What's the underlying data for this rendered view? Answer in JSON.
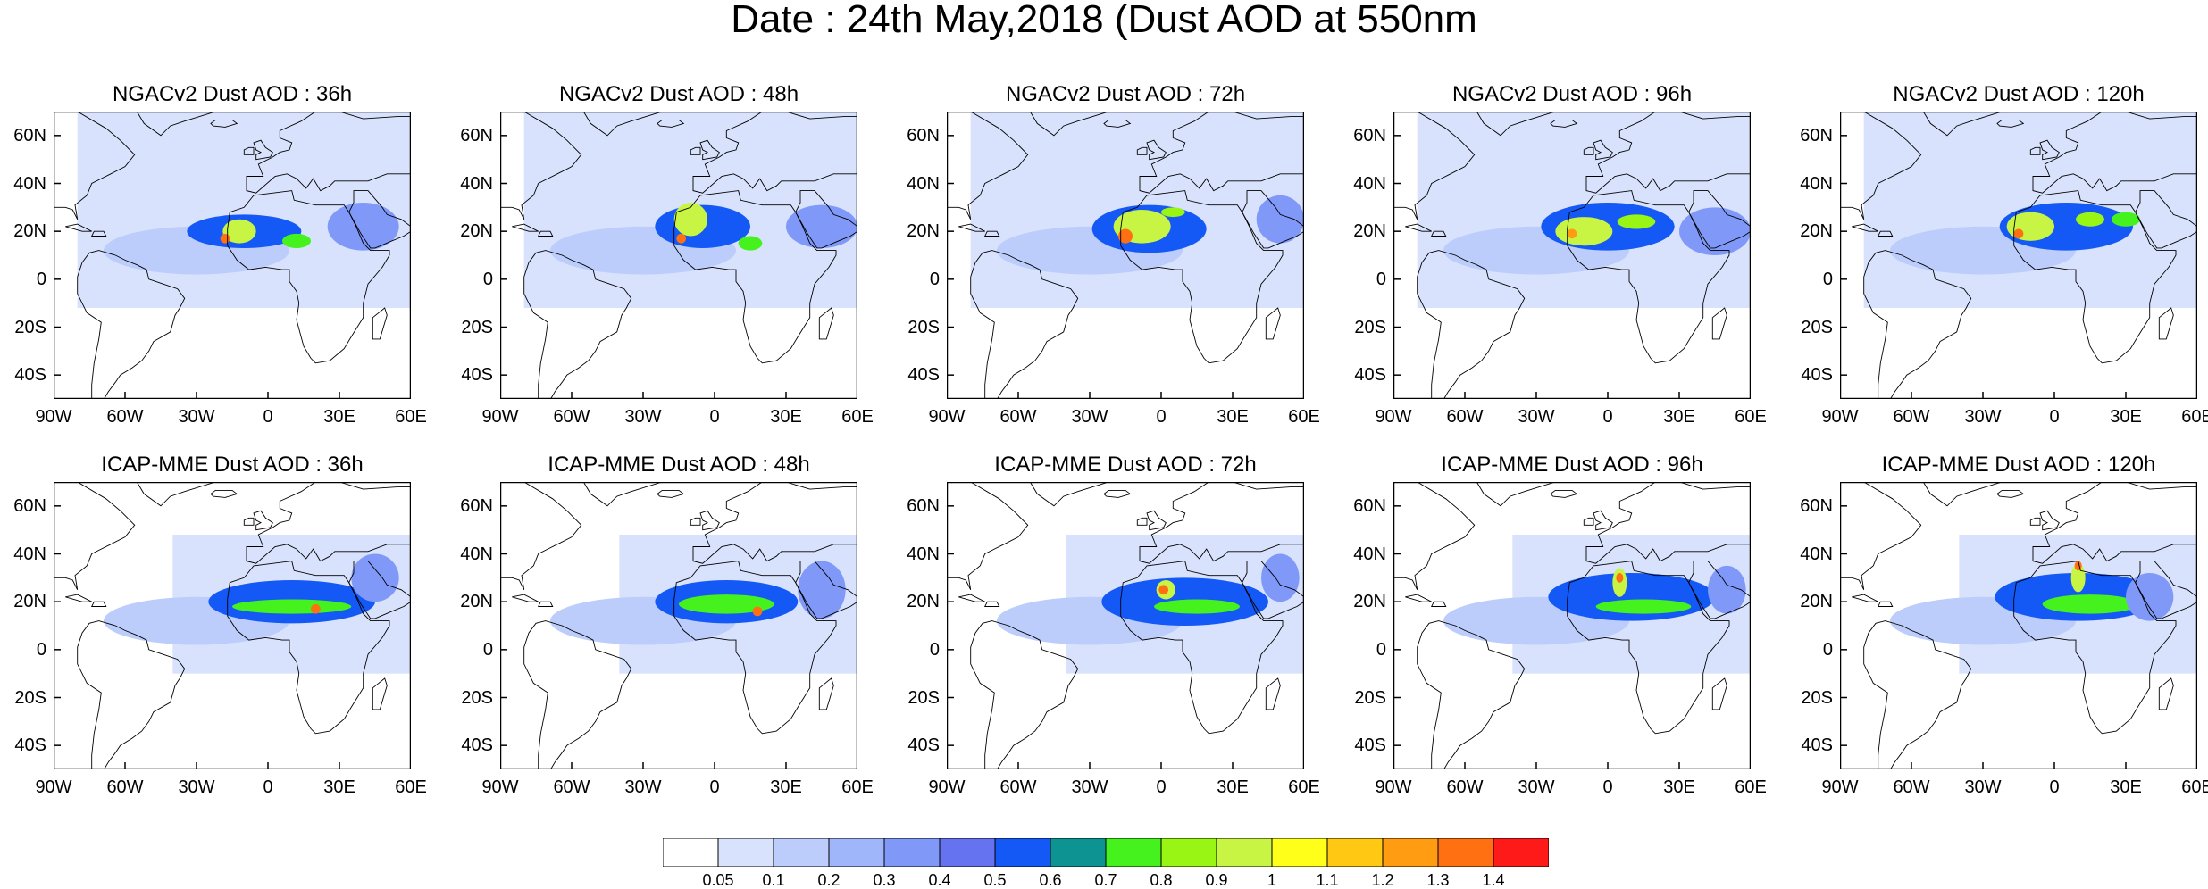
{
  "title": "Date : 24th May,2018 (Dust AOD at 550nm",
  "lat_ticks": [
    "60N",
    "40N",
    "20N",
    "0",
    "20S",
    "40S"
  ],
  "lon_ticks": [
    "90W",
    "60W",
    "30W",
    "0",
    "30E",
    "60E"
  ],
  "panels": [
    {
      "title": "NGACv2 Dust AOD : 36h",
      "blobs": [
        {
          "lon": -10,
          "lat": 20,
          "rx": 24,
          "ry": 7,
          "aod": 0.55
        },
        {
          "lon": -12,
          "lat": 20,
          "rx": 7,
          "ry": 5,
          "aod": 0.95
        },
        {
          "lon": -18,
          "lat": 17,
          "rx": 2,
          "ry": 2,
          "aod": 1.35
        },
        {
          "lon": 12,
          "lat": 16,
          "rx": 6,
          "ry": 3,
          "aod": 0.75
        },
        {
          "lon": 40,
          "lat": 22,
          "rx": 15,
          "ry": 10,
          "aod": 0.35
        }
      ]
    },
    {
      "title": "NGACv2 Dust AOD : 48h",
      "blobs": [
        {
          "lon": -5,
          "lat": 22,
          "rx": 20,
          "ry": 9,
          "aod": 0.55
        },
        {
          "lon": -10,
          "lat": 25,
          "rx": 7,
          "ry": 7,
          "aod": 0.95
        },
        {
          "lon": -14,
          "lat": 17,
          "rx": 2,
          "ry": 2,
          "aod": 1.35
        },
        {
          "lon": 15,
          "lat": 15,
          "rx": 5,
          "ry": 3,
          "aod": 0.75
        },
        {
          "lon": 45,
          "lat": 22,
          "rx": 15,
          "ry": 9,
          "aod": 0.35
        }
      ]
    },
    {
      "title": "NGACv2 Dust AOD : 72h",
      "blobs": [
        {
          "lon": -5,
          "lat": 21,
          "rx": 24,
          "ry": 10,
          "aod": 0.55
        },
        {
          "lon": -8,
          "lat": 22,
          "rx": 12,
          "ry": 7,
          "aod": 0.95
        },
        {
          "lon": -15,
          "lat": 18,
          "rx": 3,
          "ry": 3,
          "aod": 1.35
        },
        {
          "lon": 5,
          "lat": 28,
          "rx": 5,
          "ry": 2,
          "aod": 0.85
        },
        {
          "lon": 50,
          "lat": 25,
          "rx": 10,
          "ry": 10,
          "aod": 0.35
        }
      ]
    },
    {
      "title": "NGACv2 Dust AOD : 96h",
      "blobs": [
        {
          "lon": 0,
          "lat": 22,
          "rx": 28,
          "ry": 10,
          "aod": 0.55
        },
        {
          "lon": -10,
          "lat": 20,
          "rx": 12,
          "ry": 6,
          "aod": 0.95
        },
        {
          "lon": -15,
          "lat": 19,
          "rx": 2,
          "ry": 2,
          "aod": 1.25
        },
        {
          "lon": 12,
          "lat": 24,
          "rx": 8,
          "ry": 3,
          "aod": 0.85
        },
        {
          "lon": 45,
          "lat": 20,
          "rx": 15,
          "ry": 10,
          "aod": 0.35
        }
      ]
    },
    {
      "title": "NGACv2 Dust AOD : 120h",
      "blobs": [
        {
          "lon": 5,
          "lat": 22,
          "rx": 28,
          "ry": 10,
          "aod": 0.55
        },
        {
          "lon": -10,
          "lat": 22,
          "rx": 10,
          "ry": 6,
          "aod": 0.95
        },
        {
          "lon": -15,
          "lat": 19,
          "rx": 2,
          "ry": 2,
          "aod": 1.35
        },
        {
          "lon": 15,
          "lat": 25,
          "rx": 6,
          "ry": 3,
          "aod": 0.85
        },
        {
          "lon": 30,
          "lat": 25,
          "rx": 6,
          "ry": 3,
          "aod": 0.75
        }
      ]
    },
    {
      "title": "ICAP-MME Dust AOD : 36h",
      "blobs": [
        {
          "lon": 10,
          "lat": 20,
          "rx": 35,
          "ry": 9,
          "aod": 0.55
        },
        {
          "lon": 10,
          "lat": 18,
          "rx": 25,
          "ry": 3,
          "aod": 0.75
        },
        {
          "lon": 20,
          "lat": 17,
          "rx": 2,
          "ry": 2,
          "aod": 1.35
        },
        {
          "lon": 45,
          "lat": 30,
          "rx": 10,
          "ry": 10,
          "aod": 0.35
        }
      ]
    },
    {
      "title": "ICAP-MME Dust AOD : 48h",
      "blobs": [
        {
          "lon": 5,
          "lat": 20,
          "rx": 30,
          "ry": 9,
          "aod": 0.55
        },
        {
          "lon": 5,
          "lat": 19,
          "rx": 20,
          "ry": 4,
          "aod": 0.75
        },
        {
          "lon": 18,
          "lat": 16,
          "rx": 2,
          "ry": 2,
          "aod": 1.35
        },
        {
          "lon": 45,
          "lat": 25,
          "rx": 10,
          "ry": 12,
          "aod": 0.35
        }
      ]
    },
    {
      "title": "ICAP-MME Dust AOD : 72h",
      "blobs": [
        {
          "lon": 10,
          "lat": 20,
          "rx": 35,
          "ry": 10,
          "aod": 0.5
        },
        {
          "lon": 2,
          "lat": 25,
          "rx": 4,
          "ry": 4,
          "aod": 0.95
        },
        {
          "lon": 1,
          "lat": 25,
          "rx": 2,
          "ry": 2,
          "aod": 1.35
        },
        {
          "lon": 15,
          "lat": 18,
          "rx": 18,
          "ry": 3,
          "aod": 0.75
        },
        {
          "lon": 50,
          "lat": 30,
          "rx": 8,
          "ry": 10,
          "aod": 0.35
        }
      ]
    },
    {
      "title": "ICAP-MME Dust AOD : 96h",
      "blobs": [
        {
          "lon": 10,
          "lat": 22,
          "rx": 35,
          "ry": 10,
          "aod": 0.5
        },
        {
          "lon": 5,
          "lat": 28,
          "rx": 3,
          "ry": 6,
          "aod": 0.95
        },
        {
          "lon": 5,
          "lat": 30,
          "rx": 1.5,
          "ry": 2,
          "aod": 1.35
        },
        {
          "lon": 15,
          "lat": 18,
          "rx": 20,
          "ry": 3,
          "aod": 0.75
        },
        {
          "lon": 50,
          "lat": 25,
          "rx": 8,
          "ry": 10,
          "aod": 0.35
        }
      ]
    },
    {
      "title": "ICAP-MME Dust AOD : 120h",
      "blobs": [
        {
          "lon": 10,
          "lat": 22,
          "rx": 35,
          "ry": 10,
          "aod": 0.5
        },
        {
          "lon": 10,
          "lat": 30,
          "rx": 3,
          "ry": 6,
          "aod": 0.95
        },
        {
          "lon": 10,
          "lat": 35,
          "rx": 1.5,
          "ry": 2,
          "aod": 1.35
        },
        {
          "lon": 15,
          "lat": 19,
          "rx": 20,
          "ry": 4,
          "aod": 0.75
        },
        {
          "lon": 40,
          "lat": 22,
          "rx": 10,
          "ry": 10,
          "aod": 0.35
        }
      ]
    }
  ],
  "colorbar": {
    "labels": [
      "0.05",
      "0.1",
      "0.2",
      "0.3",
      "0.4",
      "0.5",
      "0.6",
      "0.7",
      "0.8",
      "0.9",
      "1",
      "1.1",
      "1.2",
      "1.3",
      "1.4"
    ],
    "colors": [
      "#ffffff",
      "#d8e2fc",
      "#bccdfb",
      "#9fb6fa",
      "#8099f8",
      "#6673f1",
      "#1459f6",
      "#0e9393",
      "#45f21e",
      "#99f514",
      "#c8f543",
      "#ffff1a",
      "#ffc813",
      "#ff9c12",
      "#ff7012",
      "#ff1a1a"
    ]
  }
}
